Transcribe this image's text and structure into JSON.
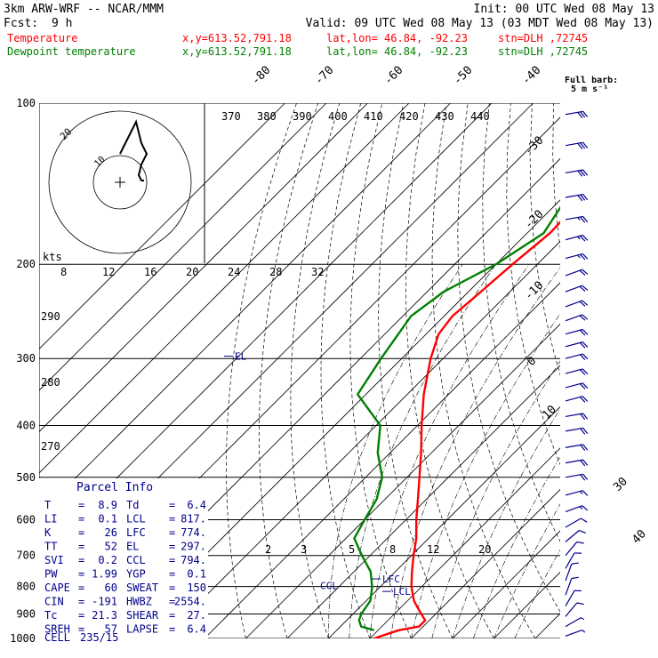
{
  "header": {
    "model": "3km ARW-WRF -- NCAR/MMM",
    "init": "Init: 00 UTC Wed 08 May 13",
    "fcst_label": "Fcst:",
    "fcst_value": "9 h",
    "valid": "Valid: 09 UTC Wed 08 May 13 (03 MDT Wed 08 May 13)",
    "temp_label": "Temperature",
    "dew_label": "Dewpoint temperature",
    "xy": "x,y=613.52,791.18",
    "latlon": "lat,lon= 46.84, -92.23",
    "stn": "stn=DLH ,72745",
    "full_barb": "Full barb:",
    "full_barb_value": "5 m s⁻¹"
  },
  "colors": {
    "temperature": "#ff0000",
    "dewpoint": "#008000",
    "annotation": "#00008b",
    "axes": "#000000"
  },
  "chart_data": {
    "type": "line",
    "subtype": "skew-T log-p sounding",
    "y_axis": {
      "name": "pressure",
      "unit": "hPa",
      "scale": "log",
      "range": [
        1000,
        100
      ],
      "ticks": [
        100,
        200,
        300,
        400,
        500,
        600,
        700,
        800,
        900,
        1000
      ]
    },
    "isotherm_labels": [
      "-80",
      "-70",
      "-60",
      "-50",
      "-40",
      "-30",
      "-20",
      "-10",
      "0",
      "10",
      "30",
      "40"
    ],
    "theta_e_labels": [
      "370",
      "380",
      "390",
      "400",
      "410",
      "420",
      "430",
      "440"
    ],
    "theta_labels": [
      "290",
      "280",
      "270"
    ],
    "mixing_ratio_labels": [
      "2",
      "3",
      "5",
      "8",
      "12",
      "20"
    ],
    "hodograph": {
      "units_label": "kts",
      "ring_labels": [
        "20",
        "10"
      ],
      "speed_ticks": [
        "8",
        "12",
        "16",
        "20",
        "24",
        "28",
        "32"
      ],
      "trace": [
        [
          -10,
          14
        ],
        [
          -6,
          22
        ],
        [
          -4,
          26
        ],
        [
          -2,
          18
        ],
        [
          0,
          14
        ],
        [
          -2,
          10
        ],
        [
          -3,
          6
        ],
        [
          -2,
          4
        ],
        [
          -1,
          4
        ]
      ]
    },
    "series": [
      {
        "name": "Temperature",
        "color": "#ff0000",
        "points": [
          [
            1000,
            1.0
          ],
          [
            965,
            5.0
          ],
          [
            950,
            9.0
          ],
          [
            925,
            9.0
          ],
          [
            900,
            6.5
          ],
          [
            870,
            3.5
          ],
          [
            850,
            1.5
          ],
          [
            800,
            -2.5
          ],
          [
            750,
            -6.0
          ],
          [
            700,
            -9.5
          ],
          [
            650,
            -13.0
          ],
          [
            600,
            -17.5
          ],
          [
            550,
            -22.0
          ],
          [
            500,
            -27.0
          ],
          [
            450,
            -32.5
          ],
          [
            400,
            -39.0
          ],
          [
            350,
            -46.0
          ],
          [
            300,
            -53.0
          ],
          [
            270,
            -57.0
          ],
          [
            250,
            -58.0
          ],
          [
            225,
            -57.0
          ],
          [
            200,
            -56.0
          ],
          [
            175,
            -54.5
          ],
          [
            150,
            -55.0
          ],
          [
            125,
            -56.0
          ],
          [
            100,
            -58.0
          ]
        ]
      },
      {
        "name": "Dewpoint temperature",
        "color": "#008000",
        "points": [
          [
            965,
            -1.0
          ],
          [
            950,
            -5.0
          ],
          [
            925,
            -7.0
          ],
          [
            900,
            -8.0
          ],
          [
            850,
            -9.0
          ],
          [
            800,
            -12.0
          ],
          [
            750,
            -16.0
          ],
          [
            700,
            -22.0
          ],
          [
            650,
            -28.0
          ],
          [
            600,
            -30.0
          ],
          [
            550,
            -32.0
          ],
          [
            500,
            -36.0
          ],
          [
            450,
            -43.0
          ],
          [
            400,
            -49.0
          ],
          [
            350,
            -62.0
          ],
          [
            300,
            -65.0
          ],
          [
            250,
            -68.0
          ],
          [
            225,
            -66.0
          ],
          [
            200,
            -60.0
          ],
          [
            175,
            -56.0
          ],
          [
            150,
            -59.0
          ],
          [
            130,
            -66.0
          ],
          [
            115,
            -64.0
          ],
          [
            100,
            -62.0
          ]
        ]
      }
    ],
    "level_markers": [
      {
        "label": "EL",
        "pressure": 297
      },
      {
        "label": "LFC",
        "pressure": 774
      },
      {
        "label": "LCL",
        "pressure": 817
      },
      {
        "label": "CCL",
        "pressure": 794
      }
    ],
    "wind_barbs": [
      {
        "p": 105,
        "spd": 30,
        "dir": 260
      },
      {
        "p": 120,
        "spd": 30,
        "dir": 260
      },
      {
        "p": 135,
        "spd": 30,
        "dir": 260
      },
      {
        "p": 150,
        "spd": 30,
        "dir": 260
      },
      {
        "p": 165,
        "spd": 25,
        "dir": 260
      },
      {
        "p": 180,
        "spd": 25,
        "dir": 255
      },
      {
        "p": 195,
        "spd": 25,
        "dir": 255
      },
      {
        "p": 210,
        "spd": 20,
        "dir": 250
      },
      {
        "p": 225,
        "spd": 20,
        "dir": 250
      },
      {
        "p": 240,
        "spd": 20,
        "dir": 250
      },
      {
        "p": 255,
        "spd": 20,
        "dir": 250
      },
      {
        "p": 270,
        "spd": 20,
        "dir": 255
      },
      {
        "p": 285,
        "spd": 20,
        "dir": 255
      },
      {
        "p": 300,
        "spd": 20,
        "dir": 255
      },
      {
        "p": 320,
        "spd": 20,
        "dir": 255
      },
      {
        "p": 340,
        "spd": 20,
        "dir": 255
      },
      {
        "p": 360,
        "spd": 20,
        "dir": 255
      },
      {
        "p": 385,
        "spd": 20,
        "dir": 260
      },
      {
        "p": 410,
        "spd": 20,
        "dir": 260
      },
      {
        "p": 440,
        "spd": 20,
        "dir": 260
      },
      {
        "p": 470,
        "spd": 20,
        "dir": 260
      },
      {
        "p": 500,
        "spd": 20,
        "dir": 260
      },
      {
        "p": 540,
        "spd": 15,
        "dir": 255
      },
      {
        "p": 580,
        "spd": 15,
        "dir": 250
      },
      {
        "p": 620,
        "spd": 10,
        "dir": 240
      },
      {
        "p": 660,
        "spd": 10,
        "dir": 230
      },
      {
        "p": 700,
        "spd": 10,
        "dir": 220
      },
      {
        "p": 740,
        "spd": 10,
        "dir": 210
      },
      {
        "p": 780,
        "spd": 10,
        "dir": 200
      },
      {
        "p": 830,
        "spd": 10,
        "dir": 200
      },
      {
        "p": 870,
        "spd": 10,
        "dir": 210
      },
      {
        "p": 910,
        "spd": 10,
        "dir": 220
      },
      {
        "p": 950,
        "spd": 5,
        "dir": 240
      },
      {
        "p": 990,
        "spd": 5,
        "dir": 250
      }
    ]
  },
  "parcel_info": {
    "title": "Parcel Info",
    "rows": [
      {
        "l1": "T",
        "v1": "8.9",
        "l2": "Td",
        "v2": "6.4"
      },
      {
        "l1": "LI",
        "v1": "0.1",
        "l2": "LCL",
        "v2": "817."
      },
      {
        "l1": "K",
        "v1": "26",
        "l2": "LFC",
        "v2": "774."
      },
      {
        "l1": "TT",
        "v1": "52",
        "l2": "EL",
        "v2": "297."
      },
      {
        "l1": "SVI",
        "v1": "0.2",
        "l2": "CCL",
        "v2": "794."
      },
      {
        "l1": "PW",
        "v1": "1.99",
        "l2": "YGP",
        "v2": "0.1"
      },
      {
        "l1": "CAPE",
        "v1": "60",
        "l2": "SWEAT",
        "v2": "150"
      },
      {
        "l1": "CIN",
        "v1": "-191",
        "l2": "HWBZ",
        "v2": "2554."
      },
      {
        "l1": "Tc",
        "v1": "21.3",
        "l2": "SHEAR",
        "v2": "27."
      },
      {
        "l1": "SREH",
        "v1": "57",
        "l2": "LAPSE",
        "v2": "6.4"
      }
    ],
    "cell_label": "CELL",
    "cell_value": "235/15"
  }
}
